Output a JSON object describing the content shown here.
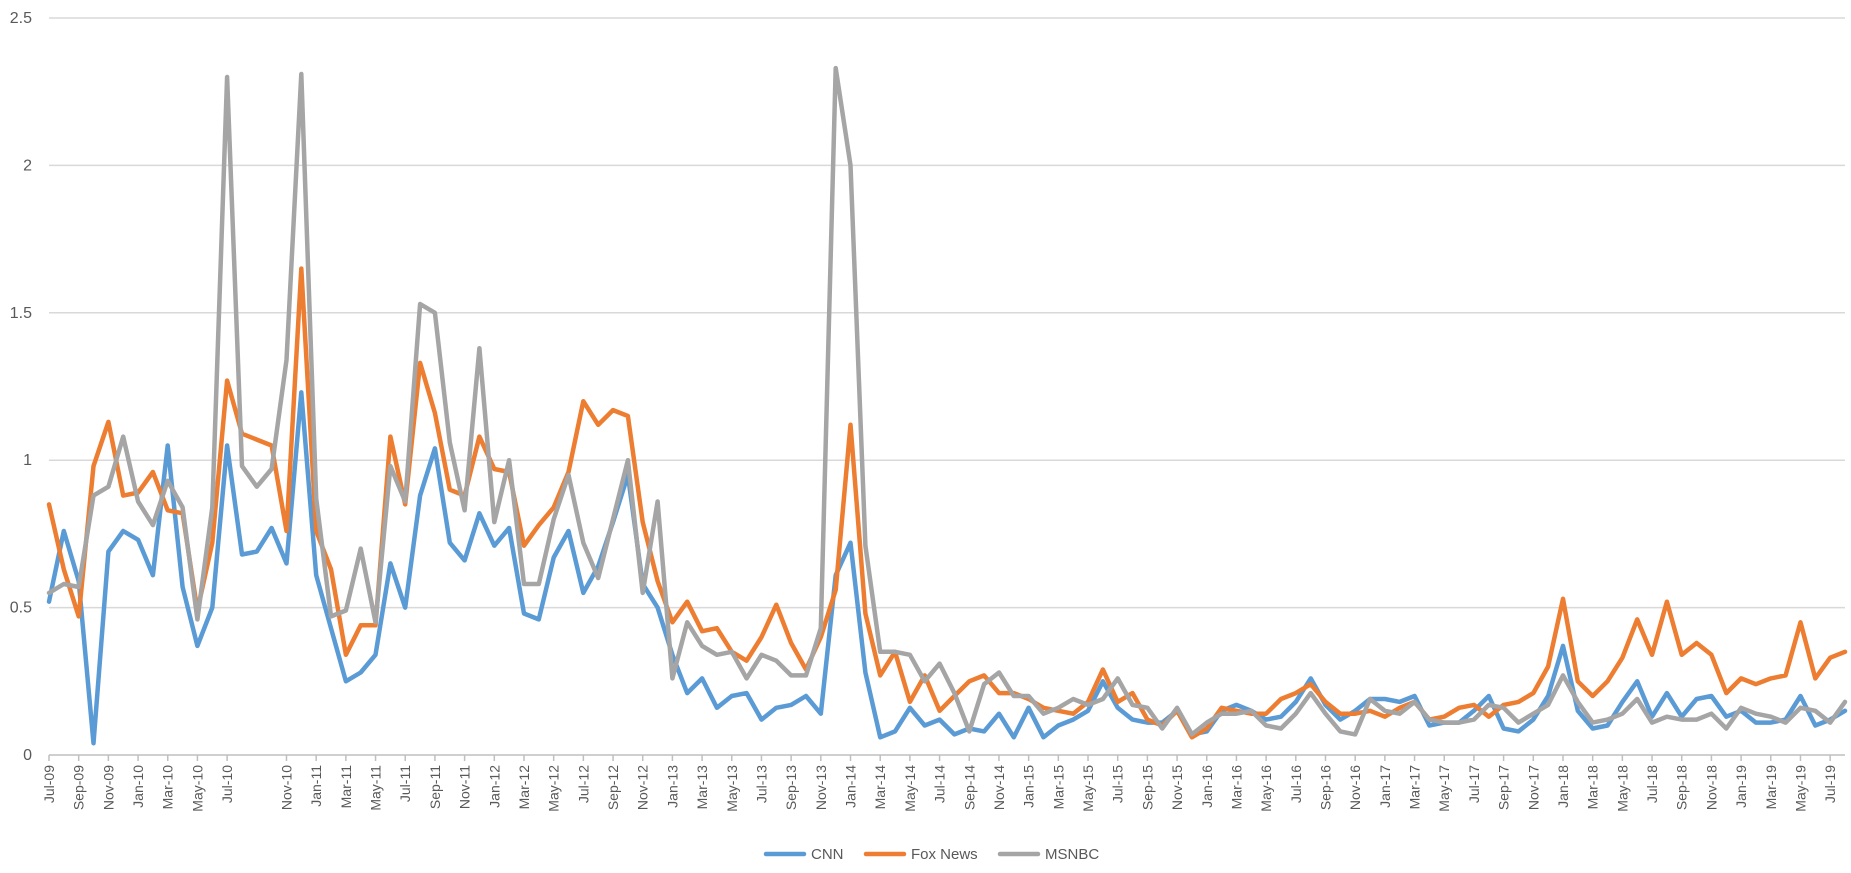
{
  "chart_data": {
    "type": "line",
    "title": "",
    "xlabel": "",
    "ylabel": "",
    "ylim": [
      0,
      2.5
    ],
    "yticks": [
      "0",
      "0.5",
      "1",
      "1.5",
      "2",
      "2.5"
    ],
    "grid": true,
    "legend_position": "bottom",
    "x": [
      "Jul-09",
      "Aug-09",
      "Sep-09",
      "Oct-09",
      "Nov-09",
      "Dec-09",
      "Jan-10",
      "Feb-10",
      "Mar-10",
      "Apr-10",
      "May-10",
      "Jun-10",
      "Jul-10",
      "Aug-10",
      "Sep-10",
      "Oct-10",
      "Nov-10",
      "Dec-10",
      "Jan-11",
      "Feb-11",
      "Mar-11",
      "Apr-11",
      "May-11",
      "Jun-11",
      "Jul-11",
      "Aug-11",
      "Sep-11",
      "Oct-11",
      "Nov-11",
      "Dec-11",
      "Jan-12",
      "Feb-12",
      "Mar-12",
      "Apr-12",
      "May-12",
      "Jun-12",
      "Jul-12",
      "Aug-12",
      "Sep-12",
      "Oct-12",
      "Nov-12",
      "Dec-12",
      "Jan-13",
      "Feb-13",
      "Mar-13",
      "Apr-13",
      "May-13",
      "Jun-13",
      "Jul-13",
      "Aug-13",
      "Sep-13",
      "Oct-13",
      "Nov-13",
      "Dec-13",
      "Jan-14",
      "Feb-14",
      "Mar-14",
      "Apr-14",
      "May-14",
      "Jun-14",
      "Jul-14",
      "Aug-14",
      "Sep-14",
      "Oct-14",
      "Nov-14",
      "Dec-14",
      "Jan-15",
      "Feb-15",
      "Mar-15",
      "Apr-15",
      "May-15",
      "Jun-15",
      "Jul-15",
      "Aug-15",
      "Sep-15",
      "Oct-15",
      "Nov-15",
      "Dec-15",
      "Jan-16",
      "Feb-16",
      "Mar-16",
      "Apr-16",
      "May-16",
      "Jun-16",
      "Jul-16",
      "Aug-16",
      "Sep-16",
      "Oct-16",
      "Nov-16",
      "Dec-16",
      "Jan-17",
      "Feb-17",
      "Mar-17",
      "Apr-17",
      "May-17",
      "Jun-17",
      "Jul-17",
      "Aug-17",
      "Sep-17",
      "Oct-17",
      "Nov-17",
      "Dec-17",
      "Jan-18",
      "Feb-18",
      "Mar-18",
      "Apr-18",
      "May-18",
      "Jun-18",
      "Jul-18",
      "Aug-18",
      "Sep-18",
      "Oct-18",
      "Nov-18",
      "Dec-18",
      "Jan-19",
      "Feb-19",
      "Mar-19",
      "Apr-19",
      "May-19",
      "Jun-19",
      "Jul-19",
      "Aug-19"
    ],
    "tick_labels": [
      "Jul-09",
      "Sep-09",
      "Nov-09",
      "Jan-10",
      "Mar-10",
      "May-10",
      "Jul-10",
      "Nov-10",
      "Jan-11",
      "Mar-11",
      "May-11",
      "Jul-11",
      "Sep-11",
      "Nov-11",
      "Jan-12",
      "Mar-12",
      "May-12",
      "Jul-12",
      "Sep-12",
      "Nov-12",
      "Jan-13",
      "Mar-13",
      "May-13",
      "Jul-13",
      "Sep-13",
      "Nov-13",
      "Jan-14",
      "Mar-14",
      "May-14",
      "Jul-14",
      "Sep-14",
      "Nov-14",
      "Jan-15",
      "Mar-15",
      "May-15",
      "Jul-15",
      "Sep-15",
      "Nov-15",
      "Jan-16",
      "Mar-16",
      "May-16",
      "Jul-16",
      "Sep-16",
      "Nov-16",
      "Jan-17",
      "Mar-17",
      "May-17",
      "Jul-17",
      "Sep-17",
      "Nov-17",
      "Jan-18",
      "Mar-18",
      "May-18",
      "Jul-18",
      "Sep-18",
      "Nov-18",
      "Jan-19",
      "Mar-19",
      "May-19",
      "Jul-19"
    ],
    "series": [
      {
        "name": "CNN",
        "color": "#5B9BD5",
        "values": [
          0.52,
          0.76,
          0.59,
          0.04,
          0.69,
          0.76,
          0.73,
          0.61,
          1.05,
          0.57,
          0.37,
          0.5,
          1.05,
          0.68,
          0.69,
          0.77,
          0.65,
          1.23,
          0.61,
          0.43,
          0.25,
          0.28,
          0.34,
          0.65,
          0.5,
          0.88,
          1.04,
          0.72,
          0.66,
          0.82,
          0.71,
          0.77,
          0.48,
          0.46,
          0.67,
          0.76,
          0.55,
          0.64,
          0.79,
          0.95,
          0.58,
          0.5,
          0.34,
          0.21,
          0.26,
          0.16,
          0.2,
          0.21,
          0.12,
          0.16,
          0.17,
          0.2,
          0.14,
          0.61,
          0.72,
          0.28,
          0.06,
          0.08,
          0.16,
          0.1,
          0.12,
          0.07,
          0.09,
          0.08,
          0.14,
          0.06,
          0.16,
          0.06,
          0.1,
          0.12,
          0.15,
          0.25,
          0.16,
          0.12,
          0.11,
          0.11,
          0.15,
          0.07,
          0.08,
          0.15,
          0.17,
          0.15,
          0.12,
          0.13,
          0.18,
          0.26,
          0.17,
          0.12,
          0.15,
          0.19,
          0.19,
          0.18,
          0.2,
          0.1,
          0.11,
          0.11,
          0.15,
          0.2,
          0.09,
          0.08,
          0.12,
          0.2,
          0.37,
          0.15,
          0.09,
          0.1,
          0.18,
          0.25,
          0.13,
          0.21,
          0.13,
          0.19,
          0.2,
          0.13,
          0.15,
          0.11,
          0.11,
          0.12,
          0.2,
          0.1,
          0.12,
          0.15
        ]
      },
      {
        "name": "Fox News",
        "color": "#ED7D31",
        "values": [
          0.85,
          0.63,
          0.47,
          0.98,
          1.13,
          0.88,
          0.89,
          0.96,
          0.83,
          0.82,
          0.49,
          0.72,
          1.27,
          1.09,
          1.07,
          1.05,
          0.76,
          1.65,
          0.76,
          0.63,
          0.34,
          0.44,
          0.44,
          1.08,
          0.85,
          1.33,
          1.16,
          0.9,
          0.88,
          1.08,
          0.97,
          0.96,
          0.71,
          0.78,
          0.84,
          0.96,
          1.2,
          1.12,
          1.17,
          1.15,
          0.79,
          0.59,
          0.45,
          0.52,
          0.42,
          0.43,
          0.35,
          0.32,
          0.4,
          0.51,
          0.38,
          0.29,
          0.4,
          0.56,
          1.12,
          0.48,
          0.27,
          0.35,
          0.18,
          0.27,
          0.15,
          0.2,
          0.25,
          0.27,
          0.21,
          0.21,
          0.19,
          0.16,
          0.15,
          0.14,
          0.18,
          0.29,
          0.18,
          0.21,
          0.12,
          0.1,
          0.15,
          0.06,
          0.09,
          0.16,
          0.15,
          0.14,
          0.14,
          0.19,
          0.21,
          0.24,
          0.18,
          0.14,
          0.14,
          0.15,
          0.13,
          0.16,
          0.18,
          0.12,
          0.13,
          0.16,
          0.17,
          0.13,
          0.17,
          0.18,
          0.21,
          0.3,
          0.53,
          0.25,
          0.2,
          0.25,
          0.33,
          0.46,
          0.34,
          0.52,
          0.34,
          0.38,
          0.34,
          0.21,
          0.26,
          0.24,
          0.26,
          0.27,
          0.45,
          0.26,
          0.33,
          0.35
        ]
      },
      {
        "name": "MSNBC",
        "color": "#A5A5A5",
        "values": [
          0.55,
          0.58,
          0.57,
          0.88,
          0.91,
          1.08,
          0.86,
          0.78,
          0.93,
          0.84,
          0.46,
          0.84,
          2.3,
          0.98,
          0.91,
          0.97,
          1.34,
          2.31,
          0.87,
          0.47,
          0.49,
          0.7,
          0.45,
          0.98,
          0.86,
          1.53,
          1.5,
          1.06,
          0.83,
          1.38,
          0.79,
          1.0,
          0.58,
          0.58,
          0.8,
          0.95,
          0.72,
          0.6,
          0.8,
          1.0,
          0.55,
          0.86,
          0.26,
          0.45,
          0.37,
          0.34,
          0.35,
          0.26,
          0.34,
          0.32,
          0.27,
          0.27,
          0.43,
          2.33,
          2.0,
          0.71,
          0.35,
          0.35,
          0.34,
          0.25,
          0.31,
          0.21,
          0.08,
          0.24,
          0.28,
          0.2,
          0.2,
          0.14,
          0.16,
          0.19,
          0.17,
          0.19,
          0.26,
          0.17,
          0.16,
          0.09,
          0.16,
          0.07,
          0.11,
          0.14,
          0.14,
          0.15,
          0.1,
          0.09,
          0.14,
          0.21,
          0.14,
          0.08,
          0.07,
          0.19,
          0.15,
          0.14,
          0.18,
          0.12,
          0.11,
          0.11,
          0.12,
          0.17,
          0.16,
          0.11,
          0.14,
          0.17,
          0.27,
          0.18,
          0.11,
          0.12,
          0.14,
          0.19,
          0.11,
          0.13,
          0.12,
          0.12,
          0.14,
          0.09,
          0.16,
          0.14,
          0.13,
          0.11,
          0.16,
          0.15,
          0.11,
          0.18
        ]
      }
    ]
  }
}
